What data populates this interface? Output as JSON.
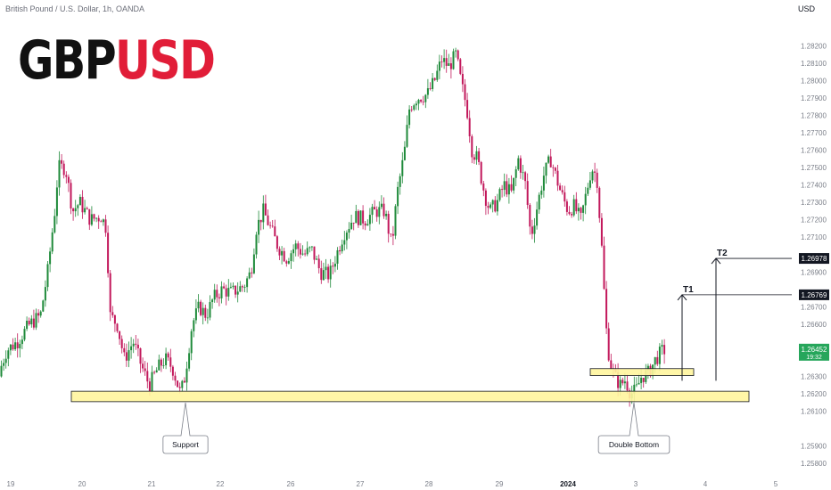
{
  "header": {
    "symbol_description": "British Pound / U.S. Dollar, 1h, OANDA",
    "currency": "USD"
  },
  "logo": {
    "base": "GBP",
    "quote": "USD"
  },
  "colors": {
    "up": "#26a69a",
    "up_body": "#1f8a3a",
    "down": "#c2185b",
    "zone_fill": "#fff59d",
    "zone_stroke": "#c9a800",
    "current_price_bg": "#26a65b",
    "target_bg": "#131722",
    "brand_red": "#e11d38"
  },
  "chart_data": {
    "type": "candlestick",
    "instrument": "GBPUSD",
    "timeframe": "1h",
    "ylim": [
      1.2575,
      1.2835
    ],
    "y_ticks": [
      1.258,
      1.259,
      1.261,
      1.262,
      1.263,
      1.266,
      1.267,
      1.269,
      1.271,
      1.272,
      1.273,
      1.274,
      1.275,
      1.276,
      1.277,
      1.278,
      1.279,
      1.28,
      1.281,
      1.282
    ],
    "y_tick_labels": [
      "1.25800",
      "1.25900",
      "1.26100",
      "1.26200",
      "1.26300",
      "1.26600",
      "1.26700",
      "1.26900",
      "1.27100",
      "1.27200",
      "1.27300",
      "1.27400",
      "1.27500",
      "1.27600",
      "1.27700",
      "1.27800",
      "1.27900",
      "1.28000",
      "1.28100",
      "1.28200"
    ],
    "x_ticks": [
      {
        "label": "19",
        "x": 12
      },
      {
        "label": "20",
        "x": 92
      },
      {
        "label": "21",
        "x": 170
      },
      {
        "label": "22",
        "x": 247
      },
      {
        "label": "26",
        "x": 326
      },
      {
        "label": "27",
        "x": 404
      },
      {
        "label": "28",
        "x": 481
      },
      {
        "label": "29",
        "x": 560
      },
      {
        "label": "2024",
        "x": 637
      },
      {
        "label": "3",
        "x": 713
      },
      {
        "label": "4",
        "x": 791
      },
      {
        "label": "5",
        "x": 870
      }
    ],
    "price_path": [
      [
        0,
        1.263
      ],
      [
        10,
        1.2645
      ],
      [
        22,
        1.265
      ],
      [
        36,
        1.266
      ],
      [
        48,
        1.2665
      ],
      [
        56,
        1.269
      ],
      [
        64,
        1.2725
      ],
      [
        68,
        1.275
      ],
      [
        76,
        1.275
      ],
      [
        84,
        1.2725
      ],
      [
        92,
        1.273
      ],
      [
        104,
        1.272
      ],
      [
        116,
        1.2722
      ],
      [
        122,
        1.2715
      ],
      [
        126,
        1.2665
      ],
      [
        134,
        1.266
      ],
      [
        142,
        1.264
      ],
      [
        152,
        1.265
      ],
      [
        162,
        1.2635
      ],
      [
        170,
        1.2625
      ],
      [
        180,
        1.2635
      ],
      [
        188,
        1.264
      ],
      [
        196,
        1.2635
      ],
      [
        205,
        1.262
      ],
      [
        210,
        1.263
      ],
      [
        218,
        1.266
      ],
      [
        226,
        1.267
      ],
      [
        234,
        1.2665
      ],
      [
        242,
        1.2675
      ],
      [
        252,
        1.268
      ],
      [
        262,
        1.2678
      ],
      [
        276,
        1.2682
      ],
      [
        284,
        1.269
      ],
      [
        290,
        1.2715
      ],
      [
        298,
        1.2725
      ],
      [
        306,
        1.2715
      ],
      [
        314,
        1.2705
      ],
      [
        324,
        1.2698
      ],
      [
        334,
        1.2705
      ],
      [
        344,
        1.27
      ],
      [
        352,
        1.2703
      ],
      [
        362,
        1.269
      ],
      [
        372,
        1.2688
      ],
      [
        380,
        1.27
      ],
      [
        388,
        1.2712
      ],
      [
        400,
        1.2722
      ],
      [
        412,
        1.272
      ],
      [
        424,
        1.2725
      ],
      [
        434,
        1.2725
      ],
      [
        442,
        1.2705
      ],
      [
        448,
        1.2735
      ],
      [
        456,
        1.2758
      ],
      [
        462,
        1.2785
      ],
      [
        470,
        1.279
      ],
      [
        482,
        1.2792
      ],
      [
        490,
        1.28
      ],
      [
        498,
        1.2812
      ],
      [
        506,
        1.2808
      ],
      [
        514,
        1.2815
      ],
      [
        520,
        1.2798
      ],
      [
        526,
        1.2785
      ],
      [
        532,
        1.276
      ],
      [
        538,
        1.2755
      ],
      [
        546,
        1.2735
      ],
      [
        552,
        1.2725
      ],
      [
        560,
        1.273
      ],
      [
        568,
        1.274
      ],
      [
        576,
        1.2735
      ],
      [
        584,
        1.2755
      ],
      [
        592,
        1.274
      ],
      [
        598,
        1.271
      ],
      [
        604,
        1.2725
      ],
      [
        612,
        1.2745
      ],
      [
        620,
        1.2755
      ],
      [
        626,
        1.2745
      ],
      [
        632,
        1.2735
      ],
      [
        640,
        1.2725
      ],
      [
        646,
        1.2728
      ],
      [
        654,
        1.272
      ],
      [
        660,
        1.2735
      ],
      [
        666,
        1.275
      ],
      [
        672,
        1.2745
      ],
      [
        678,
        1.27
      ],
      [
        682,
        1.266
      ],
      [
        686,
        1.264
      ],
      [
        692,
        1.263
      ],
      [
        698,
        1.2625
      ],
      [
        704,
        1.2628
      ],
      [
        710,
        1.262
      ],
      [
        716,
        1.2622
      ],
      [
        722,
        1.263
      ],
      [
        730,
        1.2632
      ],
      [
        738,
        1.264
      ],
      [
        746,
        1.2645
      ]
    ],
    "zones": [
      {
        "name": "support-zone",
        "x_start": 80,
        "x_end": 840,
        "top": 1.26215,
        "bottom": 1.26155
      },
      {
        "name": "resistance-zone",
        "x_start": 662,
        "x_end": 778,
        "top": 1.26345,
        "bottom": 1.26305
      }
    ],
    "callouts": [
      {
        "name": "support",
        "label": "Support",
        "x": 208,
        "tip_price": 1.26155
      },
      {
        "name": "double-bottom",
        "label": "Double Bottom",
        "x": 711,
        "tip_price": 1.26155
      }
    ],
    "targets": [
      {
        "name": "T1",
        "label": "T1",
        "price": 1.26769,
        "price_label": "1.26769",
        "arrow_x": 765,
        "arrow_base": 1.26275
      },
      {
        "name": "T2",
        "label": "T2",
        "price": 1.26978,
        "price_label": "1.26978",
        "arrow_x": 803,
        "arrow_base": 1.26275
      }
    ],
    "current_price": {
      "price": 1.26452,
      "label": "1.26452",
      "countdown": "19:32"
    }
  }
}
